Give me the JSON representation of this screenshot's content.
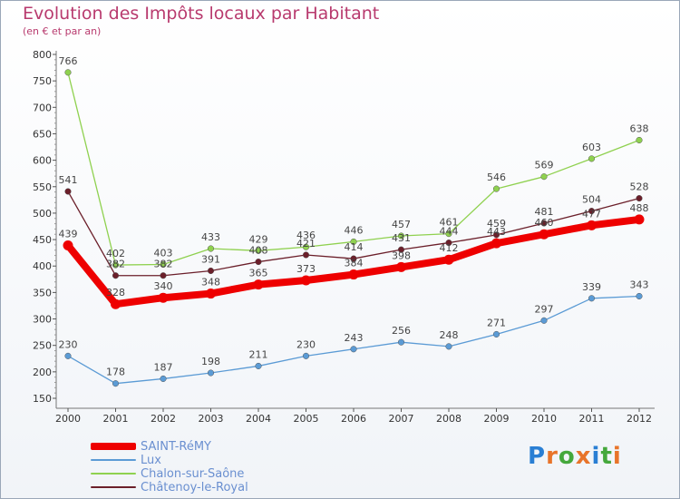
{
  "title": "Evolution des Impôts locaux par Habitant",
  "subtitle": "(en € et par an)",
  "logo": {
    "letters": [
      {
        "ch": "P",
        "color": "#2a7fd4"
      },
      {
        "ch": "r",
        "color": "#e8742a"
      },
      {
        "ch": "o",
        "color": "#45a83c"
      },
      {
        "ch": "x",
        "color": "#e8742a"
      },
      {
        "ch": "i",
        "color": "#2a7fd4"
      },
      {
        "ch": "t",
        "color": "#45a83c"
      },
      {
        "ch": "i",
        "color": "#e8742a"
      }
    ]
  },
  "chart_data": {
    "type": "line",
    "title": "Evolution des Impôts locaux par Habitant",
    "subtitle": "(en € et par an)",
    "xlabel": "",
    "ylabel": "",
    "x": [
      "2000",
      "2001",
      "2002",
      "2003",
      "2004",
      "2005",
      "2006",
      "2007",
      "2008",
      "2009",
      "2010",
      "2011",
      "2012"
    ],
    "ylim": [
      150,
      800
    ],
    "yticks": [
      150,
      200,
      250,
      300,
      350,
      400,
      450,
      500,
      550,
      600,
      650,
      700,
      750,
      800
    ],
    "grid": false,
    "legend": "bottom-left",
    "series": [
      {
        "name": "SAINT-RéMY",
        "color": "#ee0000",
        "values": [
          439,
          328,
          340,
          348,
          365,
          373,
          384,
          398,
          412,
          443,
          460,
          477,
          488
        ]
      },
      {
        "name": "Lux",
        "color": "#5b9bd5",
        "values": [
          230,
          178,
          187,
          198,
          211,
          230,
          243,
          256,
          248,
          271,
          297,
          339,
          343
        ]
      },
      {
        "name": "Chalon-sur-Saône",
        "color": "#8fd14f",
        "values": [
          766,
          402,
          403,
          433,
          429,
          436,
          446,
          457,
          461,
          546,
          569,
          603,
          638
        ]
      },
      {
        "name": "Châtenoy-le-Royal",
        "color": "#6b1f2a",
        "values": [
          541,
          382,
          382,
          391,
          408,
          421,
          414,
          431,
          444,
          459,
          481,
          504,
          528
        ]
      }
    ]
  }
}
